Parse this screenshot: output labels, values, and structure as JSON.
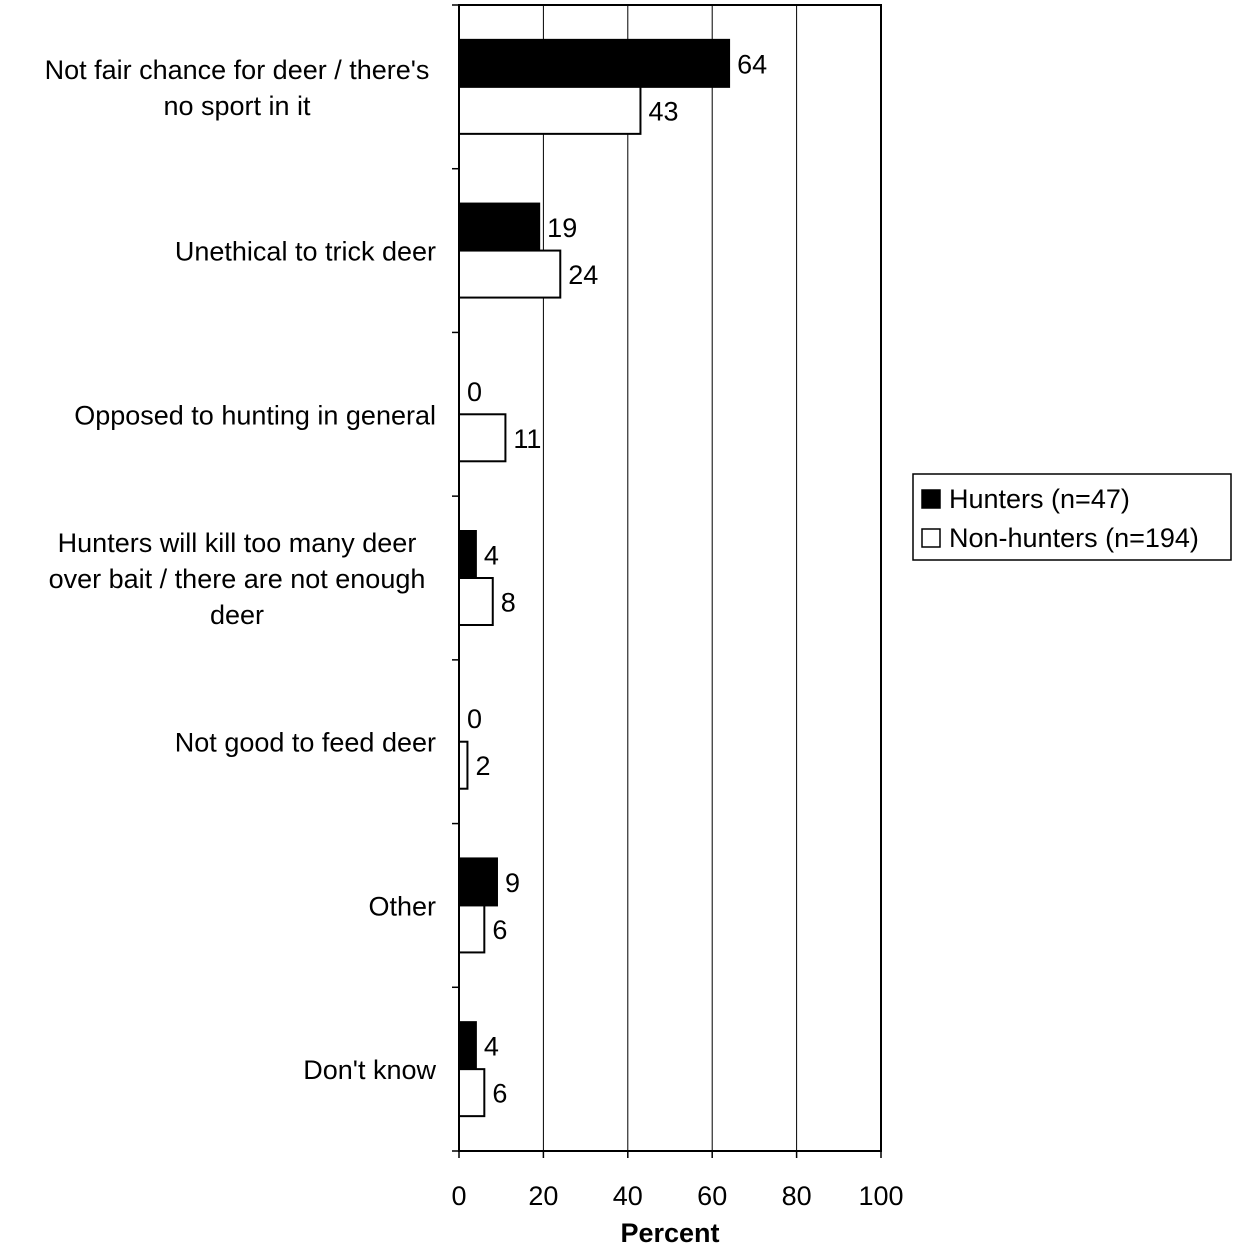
{
  "chart_data": {
    "type": "bar",
    "orientation": "horizontal",
    "categories": [
      [
        "Not fair chance for deer / there's",
        "no sport in it"
      ],
      [
        "Unethical to trick deer"
      ],
      [
        "Opposed to hunting in general"
      ],
      [
        "Hunters will kill too many deer",
        "over bait / there are not enough",
        "deer"
      ],
      [
        "Not good to feed deer"
      ],
      [
        "Other"
      ],
      [
        "Don't know"
      ]
    ],
    "series": [
      {
        "name": "Hunters (n=47)",
        "values": [
          64,
          19,
          0,
          4,
          0,
          9,
          4
        ],
        "color": "#000000"
      },
      {
        "name": "Non-hunters (n=194)",
        "values": [
          43,
          24,
          11,
          8,
          2,
          6,
          6
        ],
        "color": "#ffffff"
      }
    ],
    "xlabel": "Percent",
    "xlim": [
      0,
      100
    ],
    "xticks": [
      "0",
      "20",
      "40",
      "60",
      "80",
      "100"
    ],
    "grid": true,
    "legend_position": "right"
  }
}
